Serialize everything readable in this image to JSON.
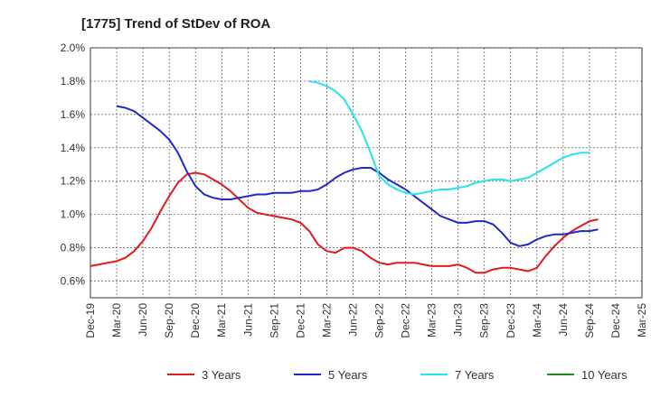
{
  "chart_data": {
    "type": "line",
    "title": "[1775]  Trend of StDev of ROA",
    "xlabel": "",
    "ylabel": "",
    "ylim": [
      0.5,
      2.0
    ],
    "y_ticks": [
      "0.6%",
      "0.8%",
      "1.0%",
      "1.2%",
      "1.4%",
      "1.6%",
      "1.8%",
      "2.0%"
    ],
    "y_tick_values": [
      0.6,
      0.8,
      1.0,
      1.2,
      1.4,
      1.6,
      1.8,
      2.0
    ],
    "x_ticks": [
      "Dec-19",
      "Mar-20",
      "Jun-20",
      "Sep-20",
      "Dec-20",
      "Mar-21",
      "Jun-21",
      "Sep-21",
      "Dec-21",
      "Mar-22",
      "Jun-22",
      "Sep-22",
      "Dec-22",
      "Mar-23",
      "Jun-23",
      "Sep-23",
      "Dec-23",
      "Mar-24",
      "Jun-24",
      "Sep-24",
      "Dec-24",
      "Mar-25"
    ],
    "grid": true,
    "legend_position": "bottom",
    "series": [
      {
        "name": "3 Years",
        "color": "#e31a1c",
        "values": [
          0.69,
          0.7,
          0.71,
          0.72,
          0.74,
          0.78,
          0.84,
          0.92,
          1.02,
          1.11,
          1.19,
          1.24,
          1.25,
          1.24,
          1.21,
          1.18,
          1.14,
          1.09,
          1.04,
          1.01,
          1.0,
          0.99,
          0.98,
          0.97,
          0.95,
          0.9,
          0.82,
          0.78,
          0.77,
          0.8,
          0.8,
          0.78,
          0.74,
          0.71,
          0.7,
          0.71,
          0.71,
          0.71,
          0.7,
          0.69,
          0.69,
          0.69,
          0.7,
          0.68,
          0.65,
          0.65,
          0.67,
          0.68,
          0.68,
          0.67,
          0.66,
          0.68,
          0.75,
          0.81,
          0.86,
          0.9,
          0.93,
          0.96,
          0.97
        ]
      },
      {
        "name": "5 Years",
        "color": "#1f28c8",
        "values": [
          null,
          null,
          null,
          1.65,
          1.64,
          1.62,
          1.58,
          1.54,
          1.5,
          1.45,
          1.37,
          1.26,
          1.17,
          1.12,
          1.1,
          1.09,
          1.09,
          1.1,
          1.11,
          1.12,
          1.12,
          1.13,
          1.13,
          1.13,
          1.14,
          1.14,
          1.15,
          1.18,
          1.22,
          1.25,
          1.27,
          1.28,
          1.28,
          1.25,
          1.21,
          1.18,
          1.15,
          1.11,
          1.07,
          1.03,
          0.99,
          0.97,
          0.95,
          0.95,
          0.96,
          0.96,
          0.94,
          0.89,
          0.83,
          0.81,
          0.82,
          0.85,
          0.87,
          0.88,
          0.88,
          0.89,
          0.9,
          0.9,
          0.91
        ]
      },
      {
        "name": "7 Years",
        "color": "#22e4ee",
        "values": [
          null,
          null,
          null,
          null,
          null,
          null,
          null,
          null,
          null,
          null,
          null,
          null,
          null,
          null,
          null,
          null,
          null,
          null,
          null,
          null,
          null,
          null,
          null,
          null,
          null,
          1.8,
          1.79,
          1.77,
          1.74,
          1.69,
          1.6,
          1.5,
          1.37,
          1.23,
          1.18,
          1.15,
          1.13,
          1.12,
          1.13,
          1.14,
          1.15,
          1.15,
          1.16,
          1.17,
          1.19,
          1.2,
          1.21,
          1.21,
          1.2,
          1.21,
          1.22,
          1.25,
          1.28,
          1.31,
          1.34,
          1.36,
          1.37,
          1.37
        ]
      },
      {
        "name": "10 Years",
        "color": "#1e8c1e",
        "values": []
      }
    ]
  }
}
